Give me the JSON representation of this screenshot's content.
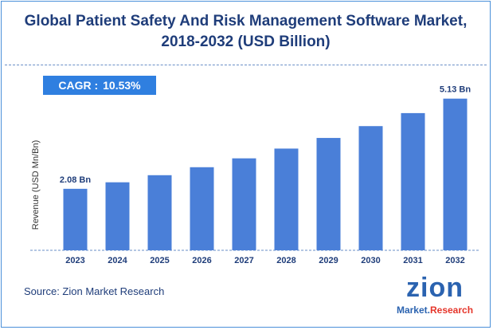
{
  "title": {
    "line1": "Global Patient Safety And Risk Management Software Market,",
    "line2": "2018-2032 (USD Billion)"
  },
  "cagr": {
    "label": "CAGR :",
    "value": "10.53%"
  },
  "source": "Source: Zion Market Research",
  "logo": {
    "word": "zion",
    "sub_main": "Market.",
    "sub_accent": "Research"
  },
  "colors": {
    "bar": "#4a7fd8",
    "title": "#1f3d7a",
    "cagr_bg": "#2f7fe0",
    "accent": "#e5352a"
  },
  "chart_data": {
    "type": "bar",
    "categories": [
      "2023",
      "2024",
      "2025",
      "2026",
      "2027",
      "2028",
      "2029",
      "2030",
      "2031",
      "2032"
    ],
    "values": [
      2.08,
      2.3,
      2.54,
      2.81,
      3.11,
      3.44,
      3.8,
      4.2,
      4.64,
      5.13
    ],
    "data_labels": [
      {
        "index": 0,
        "text": "2.08 Bn"
      },
      {
        "index": 9,
        "text": "5.13 Bn"
      }
    ],
    "ylabel": "Revenue (USD Mn/Bn)",
    "ylim": [
      0,
      5.5
    ],
    "grid": false,
    "legend": "none"
  }
}
